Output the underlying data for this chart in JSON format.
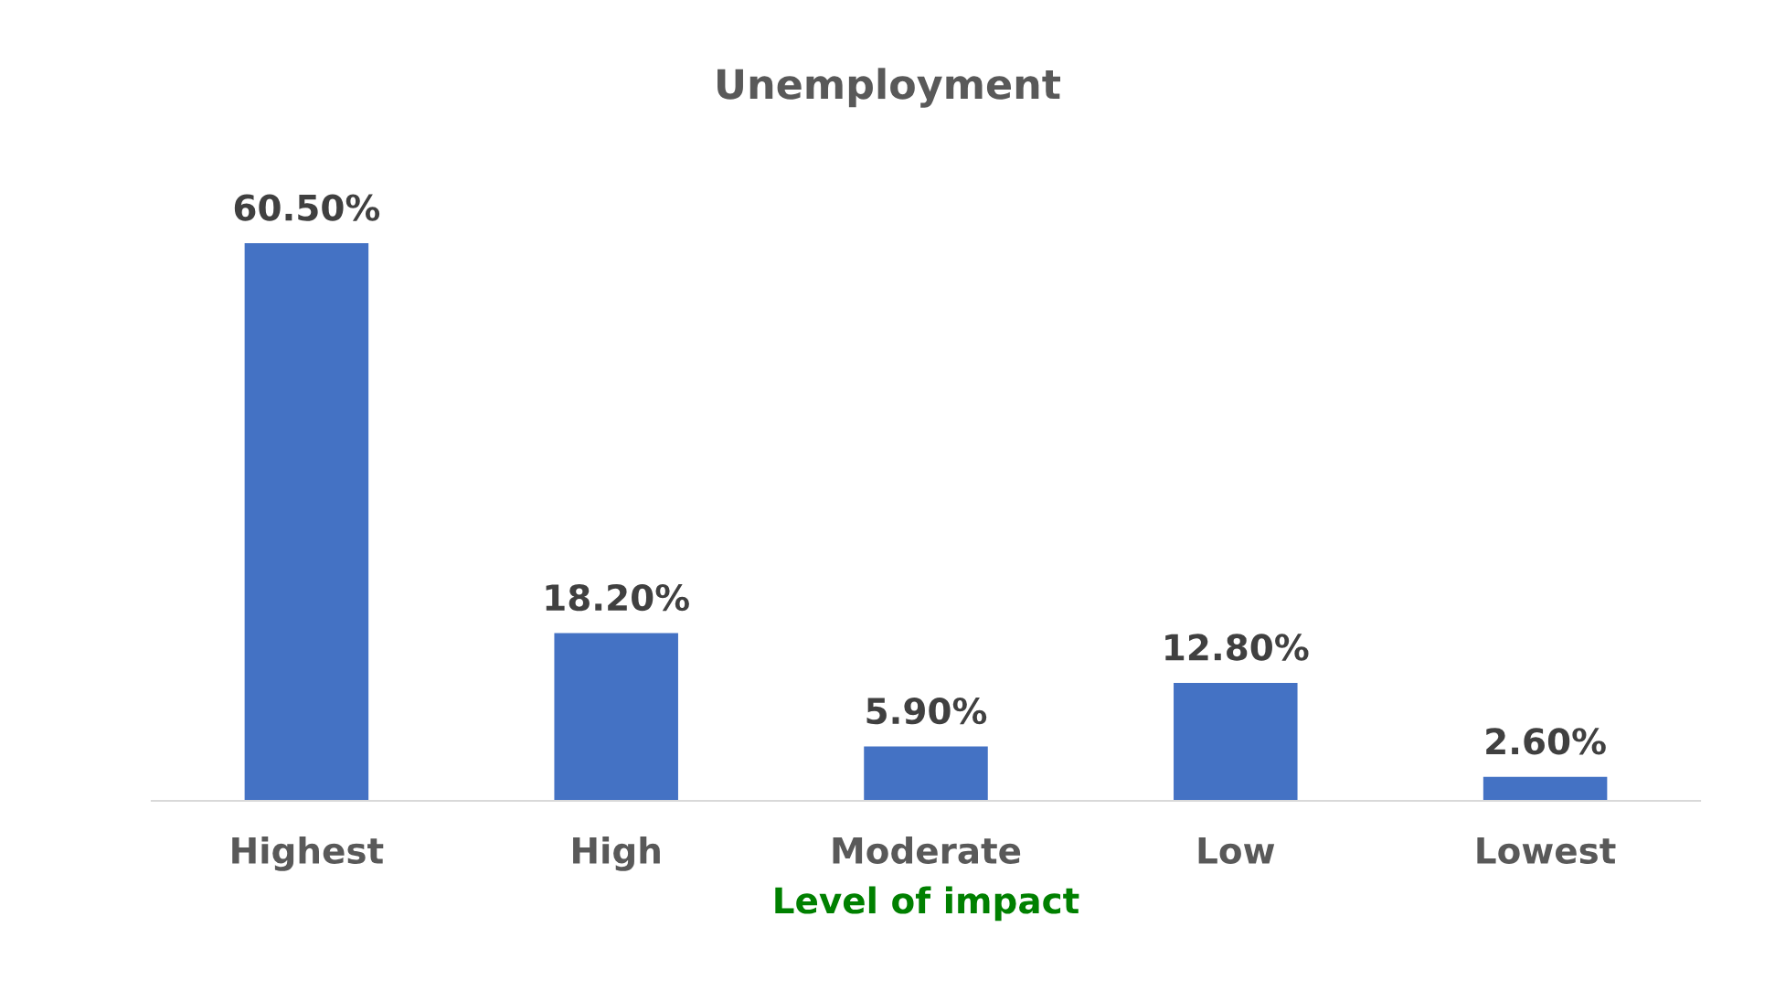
{
  "chart_data": {
    "type": "bar",
    "title": "Unemployment",
    "xlabel": "Level of impact",
    "categories": [
      "Highest",
      "High",
      "Moderate",
      "Low",
      "Lowest"
    ],
    "values": [
      60.5,
      18.2,
      5.9,
      12.8,
      2.6
    ],
    "value_labels": [
      "60.50%",
      "18.20%",
      "5.90%",
      "12.80%",
      "2.60%"
    ],
    "color": "#4472c4",
    "grid": false,
    "legend": false
  }
}
